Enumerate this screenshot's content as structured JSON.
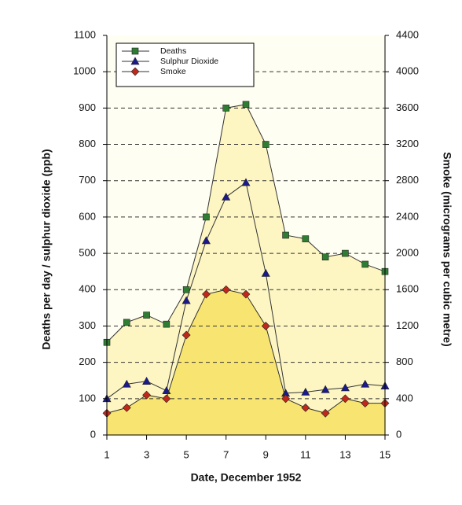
{
  "chart_data": {
    "type": "area",
    "x_label": "Date, December 1952",
    "y_label": "Deaths per day / sulphur dioxide (ppb)",
    "y2_label": "Smoke (micrograms per cubic metre)",
    "x": [
      1,
      2,
      3,
      4,
      5,
      6,
      7,
      8,
      9,
      10,
      11,
      12,
      13,
      14,
      15
    ],
    "xlim": [
      1,
      15
    ],
    "xticks": [
      1,
      3,
      5,
      7,
      9,
      11,
      13,
      15
    ],
    "ylim": [
      0,
      1100
    ],
    "yticks": [
      0,
      100,
      200,
      300,
      400,
      500,
      600,
      700,
      800,
      900,
      1000,
      1100
    ],
    "y2lim": [
      0,
      4400
    ],
    "y2ticks": [
      0,
      400,
      800,
      1200,
      1600,
      2000,
      2400,
      2800,
      3200,
      3600,
      4000,
      4400
    ],
    "grid": true,
    "legend": "top-left",
    "series": [
      {
        "name": "Deaths",
        "color": "#2e7d32",
        "marker": "square",
        "fill": "#fdf6c3",
        "values": [
          255,
          310,
          330,
          305,
          400,
          600,
          900,
          910,
          800,
          550,
          540,
          490,
          500,
          470,
          450
        ]
      },
      {
        "name": "Sulphur Dioxide",
        "color": "#1a1a8c",
        "marker": "triangle",
        "values": [
          100,
          140,
          148,
          122,
          370,
          535,
          655,
          695,
          445,
          115,
          118,
          125,
          130,
          140,
          135
        ]
      },
      {
        "name": "Smoke",
        "color": "#c0281c",
        "marker": "diamond",
        "fill": "#f8e571",
        "axis": "y2",
        "values": [
          240,
          300,
          440,
          400,
          1100,
          1550,
          1600,
          1550,
          1200,
          400,
          300,
          240,
          400,
          350,
          350
        ]
      }
    ]
  }
}
